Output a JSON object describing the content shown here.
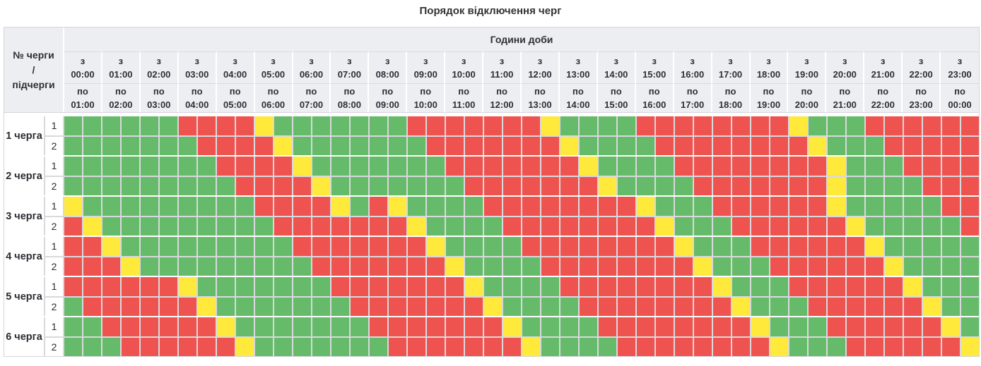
{
  "title": "Порядок відключення черг",
  "header": {
    "corner": "№ черги\n/\nпідчерги",
    "group": "Години доби",
    "from_prefix": "з",
    "to_prefix": "по"
  },
  "colors": {
    "G": "#66BB6A",
    "R": "#EF5350",
    "Y": "#FFE93B"
  },
  "chart_data": {
    "type": "heatmap",
    "title": "Порядок відключення черг",
    "x_axis_label": "Години доби",
    "cell_minutes": 30,
    "cells_per_row": 48,
    "legend": {
      "G": "green",
      "R": "red",
      "Y": "yellow"
    },
    "hours": {
      "from": [
        "00:00",
        "01:00",
        "02:00",
        "03:00",
        "04:00",
        "05:00",
        "06:00",
        "07:00",
        "08:00",
        "09:00",
        "10:00",
        "11:00",
        "12:00",
        "13:00",
        "14:00",
        "15:00",
        "16:00",
        "17:00",
        "18:00",
        "19:00",
        "20:00",
        "21:00",
        "22:00",
        "23:00"
      ],
      "to": [
        "01:00",
        "02:00",
        "03:00",
        "04:00",
        "05:00",
        "06:00",
        "07:00",
        "08:00",
        "09:00",
        "10:00",
        "11:00",
        "12:00",
        "13:00",
        "14:00",
        "15:00",
        "16:00",
        "17:00",
        "18:00",
        "19:00",
        "20:00",
        "21:00",
        "22:00",
        "23:00",
        "00:00"
      ]
    },
    "rows": [
      {
        "queue": "1 черга",
        "subqueue": "1",
        "cells": "GGGGGGRRRRYGGGGGGGRRRRRRRYGGGGRRRRRRRRYGGGRRRRRR"
      },
      {
        "queue": "1 черга",
        "subqueue": "2",
        "cells": "GGGGGGGRRRRYGGGGGGGRRRRRRRYGGGGRRRRRRRRYGGGRRRRR"
      },
      {
        "queue": "2 черга",
        "subqueue": "1",
        "cells": "GGGGGGGGRRRRYGGGGGGGRRRRRRRYGGGGRRRRRRRRYGGGRRRR"
      },
      {
        "queue": "2 черга",
        "subqueue": "2",
        "cells": "GGGGGGGGGRRRRYGGGGGGGRRRRRRRYGGGGRRRRRRRYGGGGRRR"
      },
      {
        "queue": "3 черга",
        "subqueue": "1",
        "cells": "YGGGGGGGGGRRRRYGRYGGGGRRRRRRRRYGGGRRRRRRYGGGGGRR"
      },
      {
        "queue": "3 черга",
        "subqueue": "2",
        "cells": "RYGGGGGGGGGRRRRRRRYGGGGRRRRRRRRYGGGRRRRRRYGGGGGR"
      },
      {
        "queue": "4 черга",
        "subqueue": "1",
        "cells": "RRYGGGGGGGGGRRRRRRRYGGGGRRRRRRRRYGGGRRRRRRYGGGGG"
      },
      {
        "queue": "4 черга",
        "subqueue": "2",
        "cells": "RRRYGGGGGGGGGRRRRRRRYGGGGRRRRRRRRYGGGRRRRRRYGGGG"
      },
      {
        "queue": "5 черга",
        "subqueue": "1",
        "cells": "RRRRRRYGGGGGGGRRRRRRRYGGGGRRRRRRRRYGGGRRRRRRYGGG"
      },
      {
        "queue": "5 черга",
        "subqueue": "2",
        "cells": "GRRRRRRYGGGGGGGRRRRRRRYGGGGRRRRRRRRYGGGRRRRRRYGG"
      },
      {
        "queue": "6 черга",
        "subqueue": "1",
        "cells": "GGRRRRRRYGGGGGGGRRRRRRRYGGGGRRRRRRRRYGGGRRRRRRYG"
      },
      {
        "queue": "6 черга",
        "subqueue": "2",
        "cells": "GGGRRRRRRYGGGGGGGRRRRRRRYGGGGRRRRRRRRYGGGRRRRRRY"
      }
    ]
  }
}
